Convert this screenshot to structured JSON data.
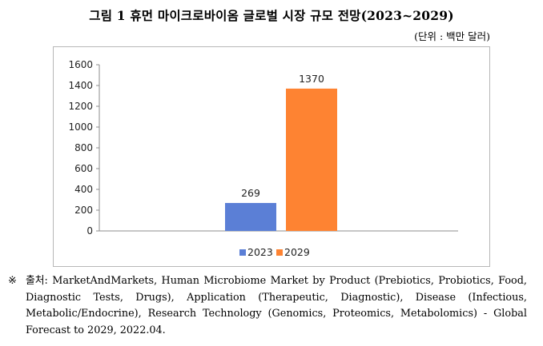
{
  "title": "그림 1 휴먼 마이크로바이옴 글로벌 시장 규모 전망(2023~2029)",
  "unit": "(단위 : 백만 달러)",
  "chart_data": {
    "type": "bar",
    "categories": [
      ""
    ],
    "series": [
      {
        "name": "2023",
        "values": [
          269
        ],
        "color": "#5b7fd6"
      },
      {
        "name": "2029",
        "values": [
          1370
        ],
        "color": "#fe8332"
      }
    ],
    "ylim": [
      0,
      1600
    ],
    "yticks": [
      "0",
      "200",
      "400",
      "600",
      "800",
      "1000",
      "1200",
      "1400",
      "1600"
    ],
    "data_labels": [
      "269",
      "1370"
    ],
    "grid": false,
    "legend_position": "bottom"
  },
  "source": {
    "mark": "※",
    "text": "출처: MarketAndMarkets, Human Microbiome Market by Product (Prebiotics, Probiotics, Food, Diagnostic Tests, Drugs), Application (Therapeutic, Diagnostic), Disease (Infectious, Metabolic/Endocrine), Research Technology (Genomics, Proteomics, Metabolomics) - Global Forecast to 2029, 2022.04."
  }
}
